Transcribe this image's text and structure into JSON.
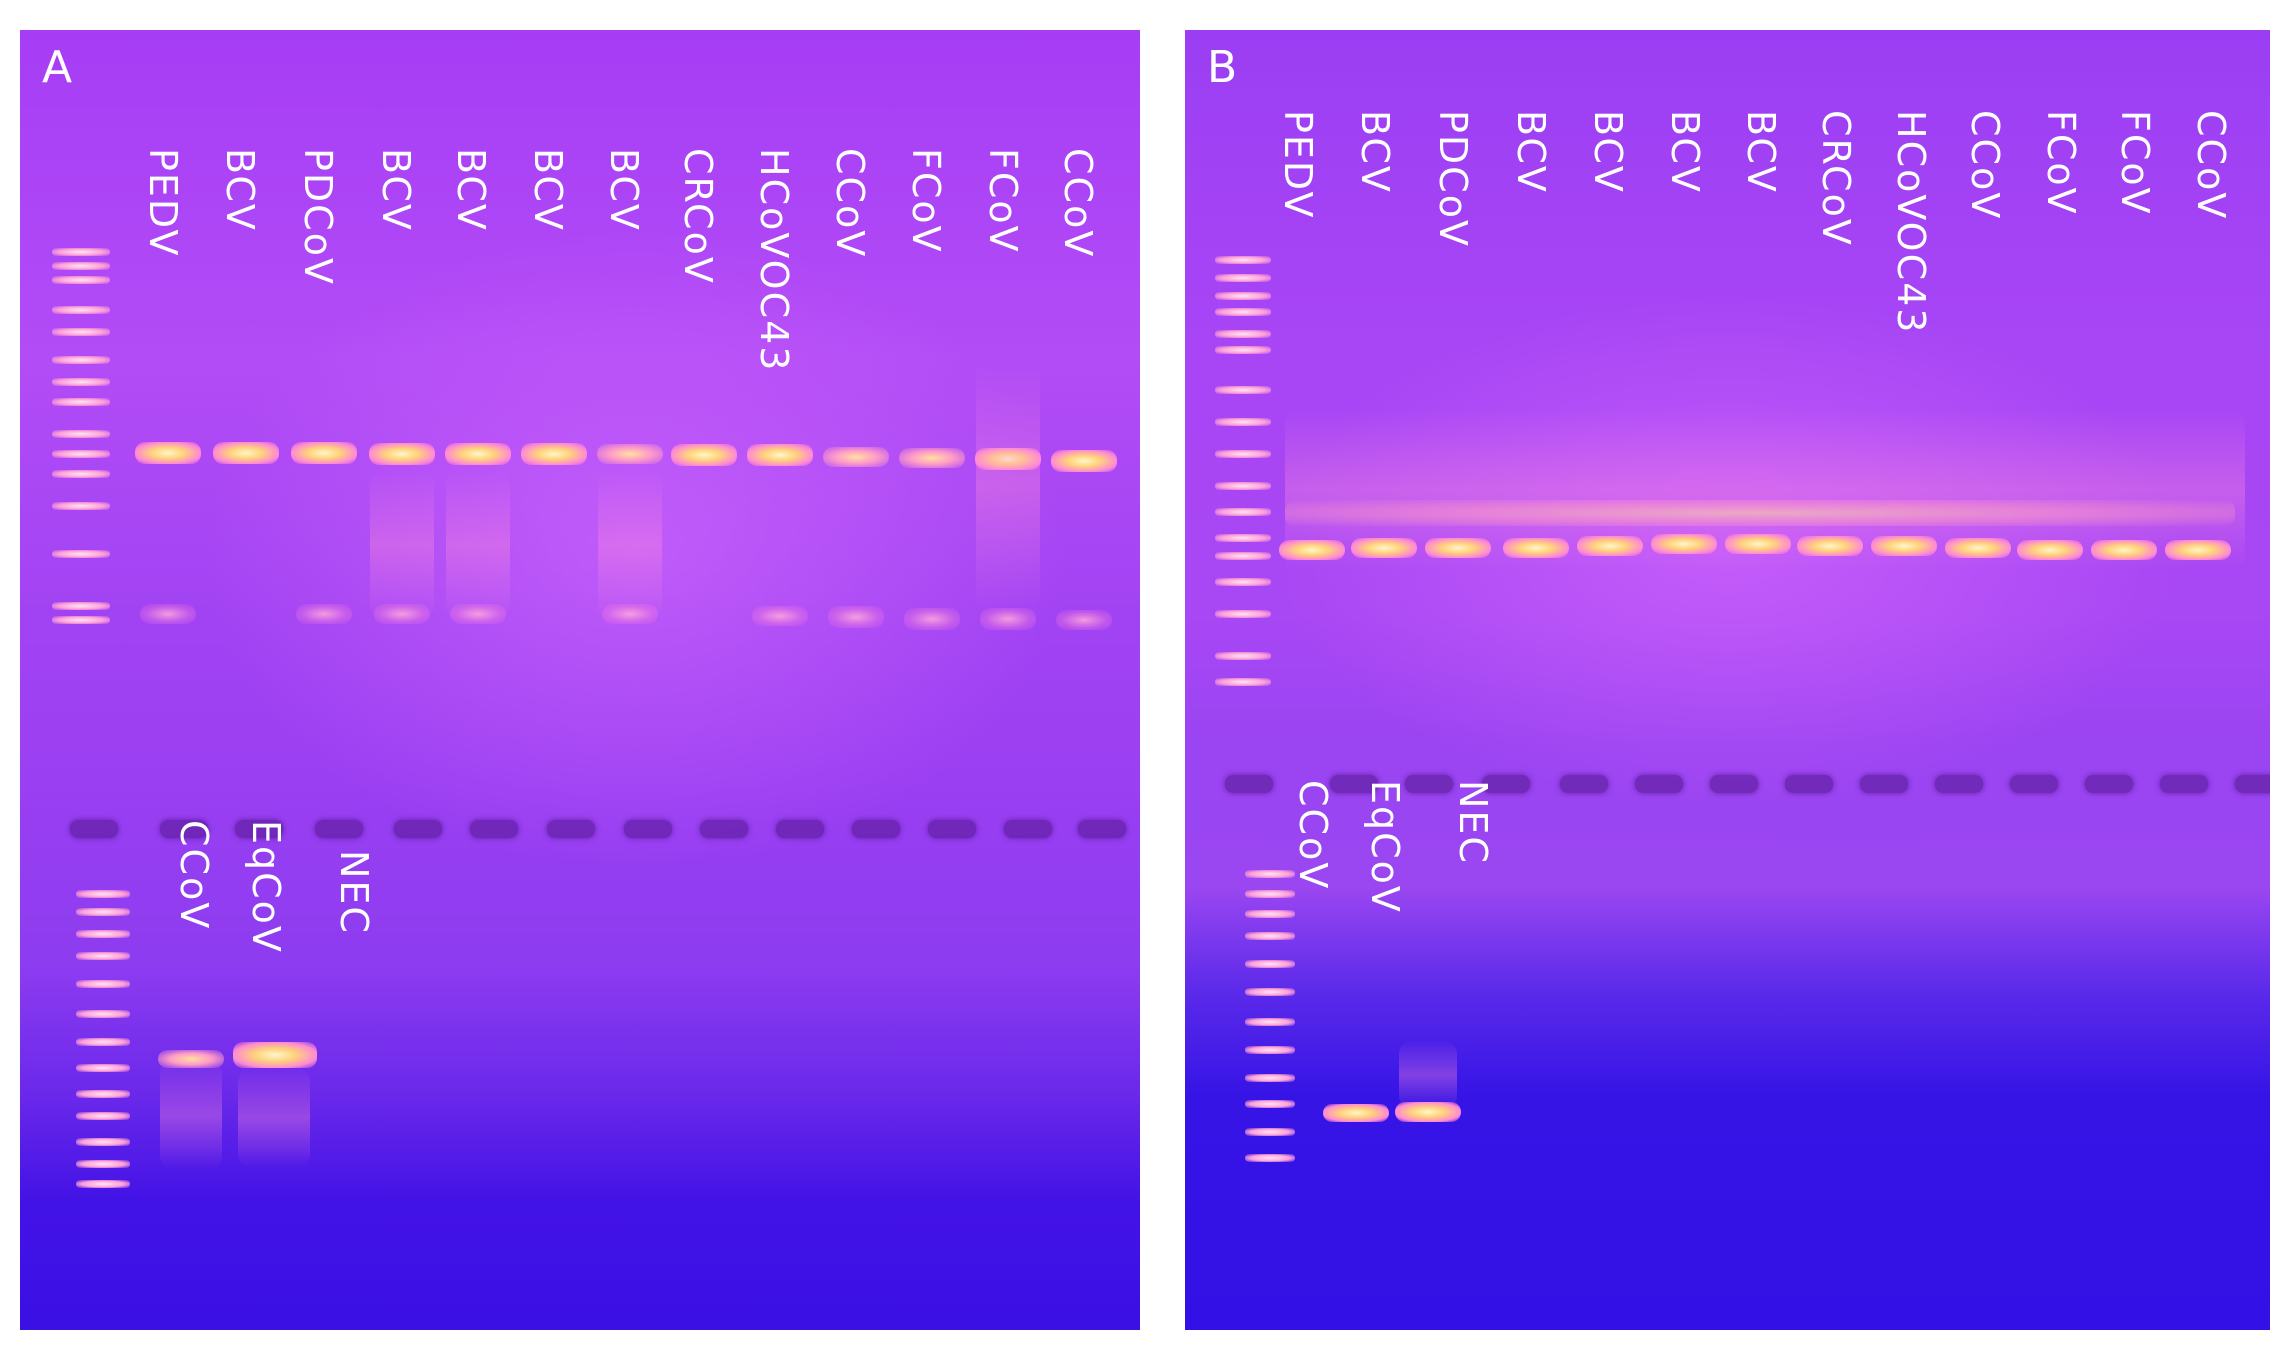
{
  "panels": [
    {
      "letter": "A",
      "top_lanes": [
        "PEDV",
        "BCV",
        "PDCoV",
        "BCV",
        "BCV",
        "BCV",
        "BCV",
        "CRCoV",
        "HCoVOC43",
        "CCoV",
        "FCoV",
        "FCoV",
        "CCoV"
      ],
      "bottom_lanes": [
        "CCoV",
        "EqCoV",
        "NEC"
      ]
    },
    {
      "letter": "B",
      "top_lanes": [
        "PEDV",
        "BCV",
        "PDCoV",
        "BCV",
        "BCV",
        "BCV",
        "BCV",
        "CRCoV",
        "HCoVOC43",
        "CCoV",
        "FCoV",
        "FCoV",
        "CCoV"
      ],
      "bottom_lanes": [
        "CCoV",
        "EqCoV",
        "NEC"
      ]
    }
  ],
  "colors": {
    "gel_purple": "#a63df5",
    "gel_blue": "#3a10e5",
    "band_yellow": "#ffd27a",
    "band_pink": "#ff8ad2",
    "label_white": "#ffffff"
  }
}
